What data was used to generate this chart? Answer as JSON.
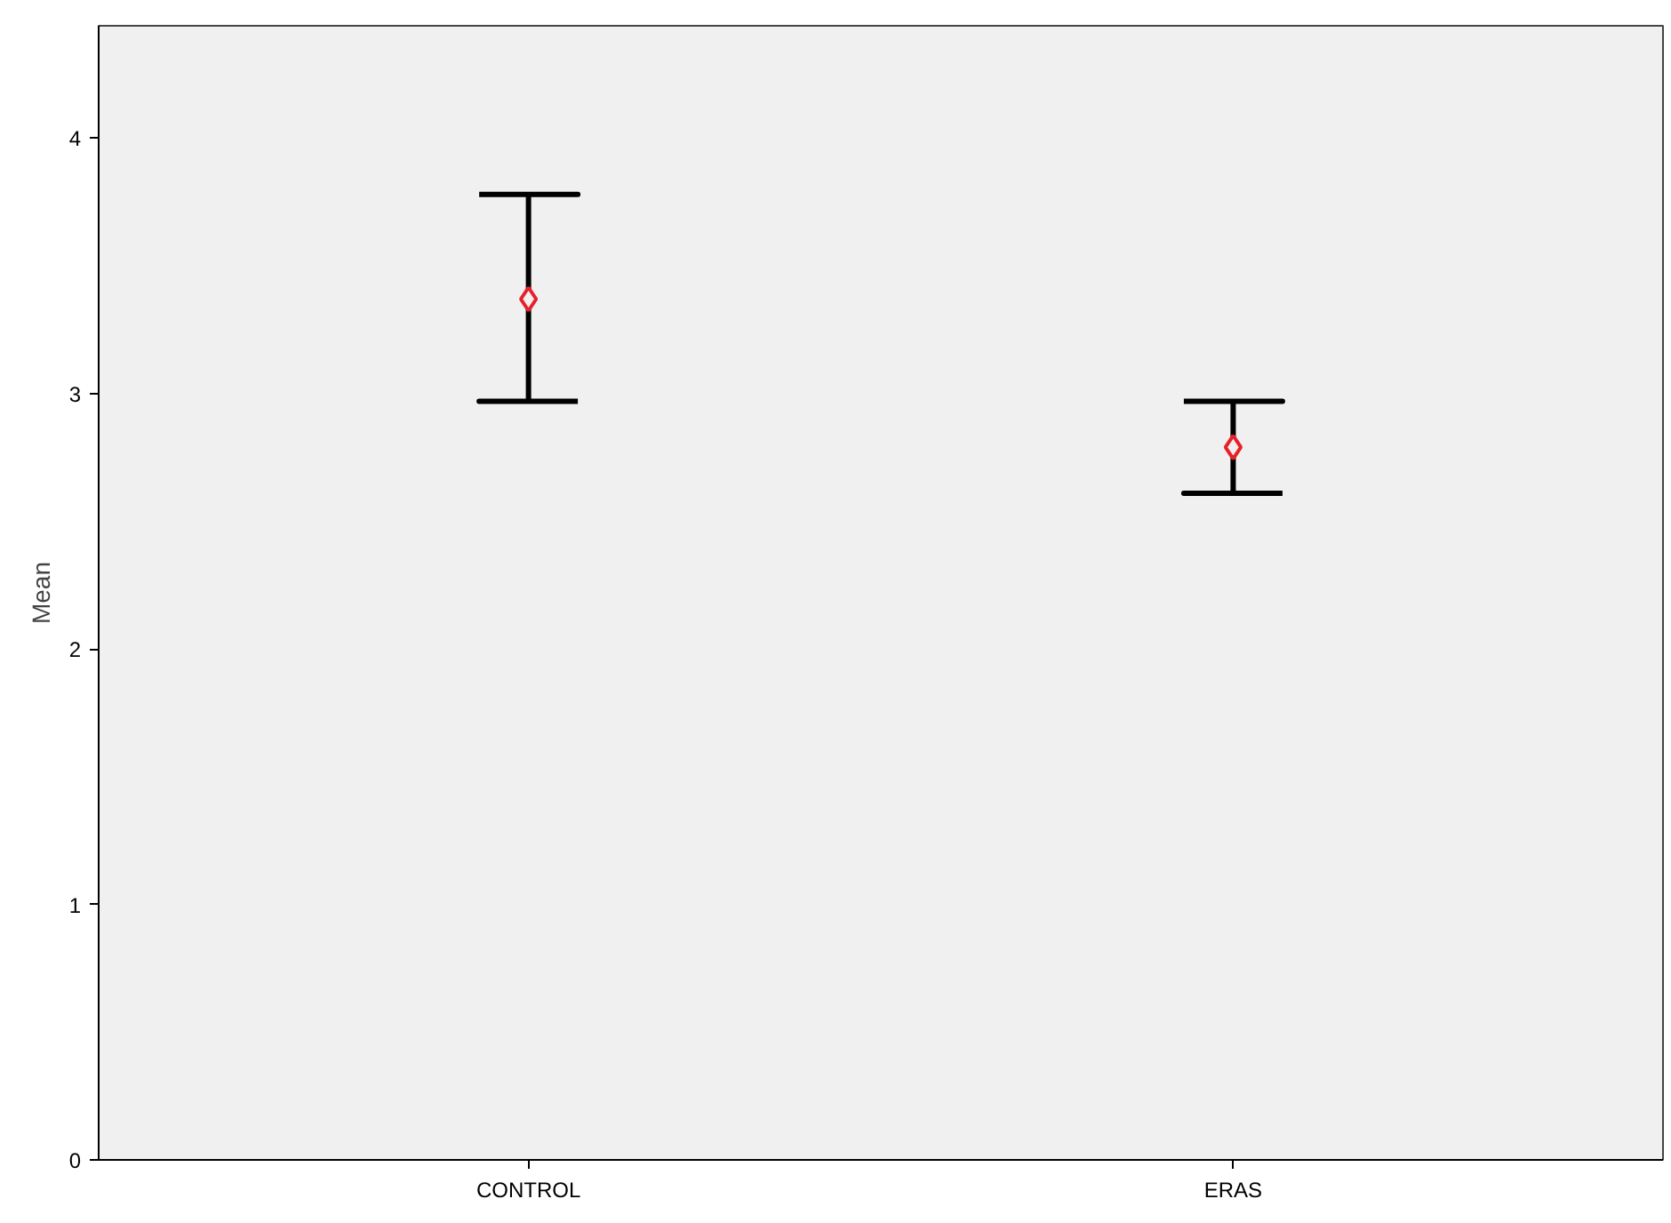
{
  "chart_data": {
    "type": "scatter",
    "ylabel": "Mean",
    "categories": [
      "CONTROL",
      "ERAS"
    ],
    "series": [
      {
        "color": "#e8202a",
        "values": [
          3.37,
          2.79
        ],
        "errors": [
          [
            2.97,
            3.78
          ],
          [
            2.61,
            2.97
          ]
        ]
      }
    ],
    "ylim": [
      0,
      4.44
    ],
    "yticks": [
      0,
      1,
      2,
      3,
      4
    ],
    "marker": "diamond",
    "grid": false
  }
}
